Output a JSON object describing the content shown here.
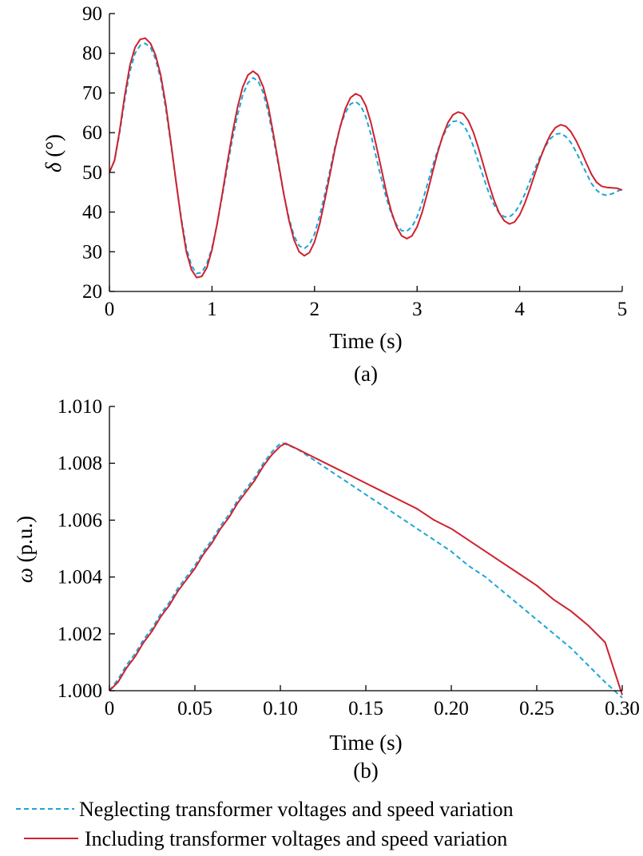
{
  "chart_data": [
    {
      "type": "line",
      "panel_label": "(a)",
      "xlabel": "Time (s)",
      "ylabel_symbol": "δ",
      "ylabel_unit": " (°)",
      "xlim": [
        0,
        5
      ],
      "ylim": [
        20,
        90
      ],
      "xticks": [
        0,
        1,
        2,
        3,
        4,
        5
      ],
      "xtick_labels": [
        "0",
        "1",
        "2",
        "3",
        "4",
        "5"
      ],
      "yticks": [
        20,
        30,
        40,
        50,
        60,
        70,
        80,
        90
      ],
      "ytick_labels": [
        "20",
        "30",
        "40",
        "50",
        "60",
        "70",
        "80",
        "90"
      ],
      "grid": false,
      "series": [
        {
          "name": "Neglecting transformer voltages and speed variation",
          "color": "#1aa7d6",
          "dash": "dashed",
          "x": [
            0,
            0.05,
            0.1,
            0.15,
            0.2,
            0.25,
            0.3,
            0.35,
            0.4,
            0.45,
            0.5,
            0.55,
            0.6,
            0.65,
            0.7,
            0.75,
            0.8,
            0.85,
            0.9,
            0.95,
            1.0,
            1.05,
            1.1,
            1.15,
            1.2,
            1.25,
            1.3,
            1.35,
            1.4,
            1.45,
            1.5,
            1.55,
            1.6,
            1.65,
            1.7,
            1.75,
            1.8,
            1.85,
            1.9,
            1.95,
            2.0,
            2.05,
            2.1,
            2.15,
            2.2,
            2.25,
            2.3,
            2.35,
            2.4,
            2.45,
            2.5,
            2.55,
            2.6,
            2.65,
            2.7,
            2.75,
            2.8,
            2.85,
            2.9,
            2.95,
            3.0,
            3.05,
            3.1,
            3.15,
            3.2,
            3.25,
            3.3,
            3.35,
            3.4,
            3.45,
            3.5,
            3.55,
            3.6,
            3.65,
            3.7,
            3.75,
            3.8,
            3.85,
            3.9,
            3.95,
            4.0,
            4.05,
            4.1,
            4.15,
            4.2,
            4.25,
            4.3,
            4.35,
            4.4,
            4.45,
            4.5,
            4.55,
            4.6,
            4.65,
            4.7,
            4.75,
            4.8,
            4.85,
            4.9,
            4.95,
            5.0
          ],
          "y": [
            50.0,
            53.0,
            60.0,
            68.5,
            75.5,
            80.0,
            82.0,
            82.5,
            81.5,
            78.5,
            73.5,
            66.0,
            57.0,
            47.5,
            38.5,
            31.0,
            26.5,
            24.5,
            24.8,
            27.0,
            31.0,
            37.0,
            44.0,
            51.5,
            58.5,
            64.5,
            69.5,
            72.5,
            73.8,
            73.0,
            70.0,
            65.0,
            58.5,
            51.5,
            44.5,
            38.5,
            34.0,
            31.5,
            30.8,
            31.8,
            34.5,
            39.0,
            44.5,
            50.5,
            56.5,
            61.5,
            65.0,
            67.2,
            67.8,
            66.8,
            64.0,
            59.5,
            54.0,
            48.5,
            43.5,
            39.5,
            36.8,
            35.3,
            35.2,
            36.3,
            38.8,
            42.5,
            47.0,
            51.5,
            55.5,
            59.0,
            61.5,
            62.8,
            63.0,
            62.0,
            59.8,
            56.5,
            52.5,
            48.5,
            44.8,
            41.8,
            39.8,
            38.8,
            38.8,
            39.8,
            41.8,
            44.5,
            47.8,
            51.0,
            54.0,
            56.5,
            58.5,
            59.6,
            59.8,
            59.0,
            57.5,
            55.2,
            52.5,
            49.8,
            47.2,
            45.5,
            44.5,
            44.2,
            44.6,
            45.2,
            45.8
          ]
        },
        {
          "name": "Including transformer voltages and speed variation",
          "color": "#d0202e",
          "dash": "solid",
          "x": [
            0,
            0.05,
            0.1,
            0.15,
            0.2,
            0.25,
            0.3,
            0.35,
            0.4,
            0.45,
            0.5,
            0.55,
            0.6,
            0.65,
            0.7,
            0.75,
            0.8,
            0.85,
            0.9,
            0.95,
            1.0,
            1.05,
            1.1,
            1.15,
            1.2,
            1.25,
            1.3,
            1.35,
            1.4,
            1.45,
            1.5,
            1.55,
            1.6,
            1.65,
            1.7,
            1.75,
            1.8,
            1.85,
            1.9,
            1.95,
            2.0,
            2.05,
            2.1,
            2.15,
            2.2,
            2.25,
            2.3,
            2.35,
            2.4,
            2.45,
            2.5,
            2.55,
            2.6,
            2.65,
            2.7,
            2.75,
            2.8,
            2.85,
            2.9,
            2.95,
            3.0,
            3.05,
            3.1,
            3.15,
            3.2,
            3.25,
            3.3,
            3.35,
            3.4,
            3.45,
            3.5,
            3.55,
            3.6,
            3.65,
            3.7,
            3.75,
            3.8,
            3.85,
            3.9,
            3.95,
            4.0,
            4.05,
            4.1,
            4.15,
            4.2,
            4.25,
            4.3,
            4.35,
            4.4,
            4.45,
            4.5,
            4.55,
            4.6,
            4.65,
            4.7,
            4.75,
            4.8,
            4.85,
            4.9,
            4.95,
            5.0
          ],
          "y": [
            50.0,
            53.0,
            60.5,
            69.5,
            77.0,
            81.5,
            83.5,
            83.8,
            82.5,
            79.5,
            74.5,
            67.0,
            57.5,
            47.5,
            38.0,
            30.0,
            25.5,
            23.5,
            23.8,
            26.0,
            30.5,
            37.0,
            44.5,
            52.5,
            60.0,
            66.5,
            71.5,
            74.5,
            75.5,
            74.5,
            71.5,
            66.5,
            59.5,
            52.0,
            44.5,
            38.0,
            33.0,
            30.0,
            29.0,
            29.8,
            32.5,
            37.0,
            43.0,
            49.5,
            56.0,
            61.5,
            66.0,
            68.8,
            69.8,
            69.2,
            66.8,
            62.5,
            57.0,
            51.0,
            45.0,
            40.0,
            36.3,
            34.0,
            33.3,
            34.0,
            36.3,
            40.0,
            44.8,
            50.0,
            55.0,
            59.2,
            62.5,
            64.5,
            65.2,
            64.8,
            63.0,
            60.0,
            56.0,
            51.5,
            47.0,
            43.0,
            39.8,
            37.8,
            37.0,
            37.5,
            39.3,
            42.2,
            45.8,
            49.8,
            53.5,
            56.8,
            59.5,
            61.3,
            62.0,
            61.6,
            60.2,
            58.0,
            55.3,
            52.3,
            49.5,
            47.5,
            46.5,
            46.2,
            46.1,
            46.0,
            45.5
          ]
        }
      ]
    },
    {
      "type": "line",
      "panel_label": "(b)",
      "xlabel": "Time (s)",
      "ylabel_symbol": "ω",
      "ylabel_unit": " (p.u.)",
      "xlim": [
        0,
        0.3
      ],
      "ylim": [
        1.0,
        1.01
      ],
      "xticks": [
        0,
        0.05,
        0.1,
        0.15,
        0.2,
        0.25,
        0.3
      ],
      "xtick_labels": [
        "0",
        "0.05",
        "0.10",
        "0.15",
        "0.20",
        "0.25",
        "0.30"
      ],
      "yticks": [
        1.0,
        1.002,
        1.004,
        1.006,
        1.008,
        1.01
      ],
      "ytick_labels": [
        "1.000",
        "1.002",
        "1.004",
        "1.006",
        "1.008",
        "1.010"
      ],
      "grid": false,
      "series": [
        {
          "name": "Neglecting transformer voltages and speed variation",
          "color": "#1aa7d6",
          "dash": "dashed",
          "x": [
            0,
            0.005,
            0.01,
            0.015,
            0.02,
            0.025,
            0.03,
            0.035,
            0.04,
            0.045,
            0.05,
            0.055,
            0.06,
            0.065,
            0.07,
            0.075,
            0.08,
            0.085,
            0.09,
            0.095,
            0.1,
            0.102,
            0.11,
            0.12,
            0.13,
            0.14,
            0.15,
            0.16,
            0.17,
            0.18,
            0.19,
            0.2,
            0.21,
            0.22,
            0.23,
            0.24,
            0.25,
            0.26,
            0.27,
            0.28,
            0.29,
            0.3
          ],
          "y": [
            1.0,
            1.0004,
            1.0009,
            1.0013,
            1.0018,
            1.0022,
            1.0027,
            1.0031,
            1.0036,
            1.004,
            1.0044,
            1.0049,
            1.0053,
            1.0058,
            1.0062,
            1.0067,
            1.0071,
            1.0075,
            1.008,
            1.0084,
            1.0087,
            1.0087,
            1.0085,
            1.0081,
            1.0077,
            1.0073,
            1.0069,
            1.0065,
            1.0061,
            1.0057,
            1.0053,
            1.0049,
            1.0044,
            1.004,
            1.0035,
            1.003,
            1.0025,
            1.002,
            1.0015,
            1.0009,
            1.0003,
            0.99975
          ]
        },
        {
          "name": "Including transformer voltages and speed variation",
          "color": "#d0202e",
          "dash": "solid",
          "x": [
            0,
            0.005,
            0.01,
            0.015,
            0.02,
            0.025,
            0.03,
            0.035,
            0.04,
            0.045,
            0.05,
            0.055,
            0.06,
            0.065,
            0.07,
            0.075,
            0.08,
            0.085,
            0.09,
            0.095,
            0.1,
            0.103,
            0.11,
            0.12,
            0.13,
            0.14,
            0.15,
            0.16,
            0.17,
            0.18,
            0.19,
            0.2,
            0.21,
            0.22,
            0.23,
            0.24,
            0.25,
            0.26,
            0.27,
            0.28,
            0.29,
            0.3
          ],
          "y": [
            1.0,
            1.0003,
            1.0008,
            1.0012,
            1.0017,
            1.0021,
            1.0026,
            1.003,
            1.0035,
            1.0039,
            1.0043,
            1.0048,
            1.0052,
            1.0057,
            1.0061,
            1.0066,
            1.007,
            1.0074,
            1.0079,
            1.0083,
            1.0086,
            1.0087,
            1.0085,
            1.0082,
            1.0079,
            1.0076,
            1.0073,
            1.007,
            1.0067,
            1.0064,
            1.006,
            1.0057,
            1.0053,
            1.0049,
            1.0045,
            1.0041,
            1.0037,
            1.0032,
            1.0028,
            1.0023,
            1.0017,
            0.99985
          ]
        }
      ]
    }
  ],
  "legend": {
    "placement": "bottom-center",
    "items": [
      {
        "label": "Neglecting transformer voltages and speed variation",
        "color": "#1aa7d6",
        "dash": "dashed"
      },
      {
        "label": "Including transformer voltages and speed variation",
        "color": "#d0202e",
        "dash": "solid"
      }
    ]
  }
}
